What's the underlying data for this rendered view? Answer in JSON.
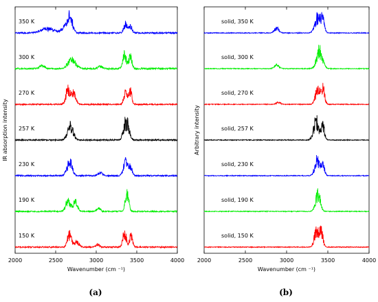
{
  "chart_data": [
    {
      "type": "line",
      "panel_label": "(a)",
      "xlabel": "Wavenumber (cm ⁻¹)",
      "ylabel": "IR absorption intensity",
      "xlim": [
        2000,
        4000
      ],
      "xticks": [
        "2000",
        "2500",
        "3000",
        "3500",
        "4000"
      ],
      "stacked_offset": true,
      "series": [
        {
          "name": "350 K",
          "color": "#0000ff",
          "noise": 0.06,
          "peaks": [
            [
              2680,
              0.85,
              40
            ],
            [
              2620,
              0.3,
              60
            ],
            [
              2400,
              0.22,
              120
            ],
            [
              3360,
              0.45,
              30
            ],
            [
              3420,
              0.35,
              30
            ]
          ]
        },
        {
          "name": "300 K",
          "color": "#00ee00",
          "noise": 0.06,
          "peaks": [
            [
              2700,
              0.45,
              70
            ],
            [
              2330,
              0.2,
              40
            ],
            [
              3350,
              0.75,
              30
            ],
            [
              3420,
              0.6,
              30
            ],
            [
              3050,
              0.12,
              40
            ]
          ]
        },
        {
          "name": "270 K",
          "color": "#ff0000",
          "noise": 0.05,
          "peaks": [
            [
              2650,
              0.8,
              35
            ],
            [
              2720,
              0.6,
              40
            ],
            [
              3360,
              0.65,
              30
            ],
            [
              3420,
              0.75,
              25
            ]
          ]
        },
        {
          "name": "257 K",
          "color": "#000000",
          "noise": 0.05,
          "peaks": [
            [
              2680,
              0.75,
              50
            ],
            [
              3370,
              1.0,
              45
            ]
          ]
        },
        {
          "name": "230 K",
          "color": "#0000ff",
          "noise": 0.05,
          "peaks": [
            [
              2670,
              0.75,
              45
            ],
            [
              3360,
              0.8,
              35
            ],
            [
              3420,
              0.5,
              30
            ],
            [
              3050,
              0.15,
              40
            ]
          ]
        },
        {
          "name": "190 K",
          "color": "#00ee00",
          "noise": 0.05,
          "peaks": [
            [
              2650,
              0.55,
              40
            ],
            [
              2740,
              0.5,
              40
            ],
            [
              3380,
              1.0,
              30
            ],
            [
              3030,
              0.2,
              30
            ]
          ]
        },
        {
          "name": "150 K",
          "color": "#ff0000",
          "noise": 0.05,
          "peaks": [
            [
              2670,
              0.7,
              35
            ],
            [
              2760,
              0.3,
              40
            ],
            [
              3350,
              0.8,
              30
            ],
            [
              3430,
              0.75,
              25
            ],
            [
              3020,
              0.15,
              30
            ]
          ]
        }
      ]
    },
    {
      "type": "line",
      "panel_label": "(b)",
      "xlabel": "Wavenumber (cm ⁻¹)",
      "ylabel": "Arbitrary intensity",
      "xlim": [
        2000,
        4000
      ],
      "xticks": [
        "2000",
        "2500",
        "3000",
        "3500",
        "4000"
      ],
      "stacked_offset": true,
      "series": [
        {
          "name": "solid, 350 K",
          "color": "#0000ff",
          "noise": 0.03,
          "peaks": [
            [
              2880,
              0.25,
              40
            ],
            [
              3380,
              0.9,
              50
            ],
            [
              3440,
              0.6,
              30
            ]
          ]
        },
        {
          "name": "solid, 300 K",
          "color": "#00ee00",
          "noise": 0.03,
          "peaks": [
            [
              2880,
              0.2,
              40
            ],
            [
              3400,
              0.95,
              50
            ]
          ]
        },
        {
          "name": "solid, 270 K",
          "color": "#ff0000",
          "noise": 0.03,
          "peaks": [
            [
              2900,
              0.1,
              40
            ],
            [
              3380,
              0.9,
              40
            ],
            [
              3440,
              0.8,
              30
            ]
          ]
        },
        {
          "name": "solid, 257 K",
          "color": "#000000",
          "noise": 0.03,
          "peaks": [
            [
              3360,
              1.0,
              45
            ],
            [
              3440,
              0.7,
              30
            ]
          ]
        },
        {
          "name": "solid, 230 K",
          "color": "#0000ff",
          "noise": 0.03,
          "peaks": [
            [
              3370,
              0.85,
              40
            ],
            [
              3440,
              0.55,
              30
            ]
          ]
        },
        {
          "name": "solid, 190 K",
          "color": "#00ee00",
          "noise": 0.03,
          "peaks": [
            [
              3380,
              0.95,
              40
            ]
          ]
        },
        {
          "name": "solid, 150 K",
          "color": "#ff0000",
          "noise": 0.03,
          "peaks": [
            [
              3360,
              0.9,
              35
            ],
            [
              3420,
              0.85,
              30
            ]
          ]
        }
      ]
    }
  ]
}
